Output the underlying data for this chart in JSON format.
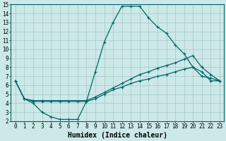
{
  "title": "",
  "xlabel": "Humidex (Indice chaleur)",
  "ylabel": "",
  "bg_color": "#cce8e8",
  "grid_color": "#aacccc",
  "line_color": "#006666",
  "xlim": [
    -0.5,
    23.5
  ],
  "ylim": [
    2,
    15
  ],
  "xticks": [
    0,
    1,
    2,
    3,
    4,
    5,
    6,
    7,
    8,
    9,
    10,
    11,
    12,
    13,
    14,
    15,
    16,
    17,
    18,
    19,
    20,
    21,
    22,
    23
  ],
  "yticks": [
    2,
    3,
    4,
    5,
    6,
    7,
    8,
    9,
    10,
    11,
    12,
    13,
    14,
    15
  ],
  "series": [
    {
      "x": [
        0,
        1,
        2,
        3,
        4,
        5,
        6,
        7,
        8,
        9,
        10,
        11,
        12,
        13,
        14,
        15,
        16,
        17,
        18,
        19,
        20,
        21,
        22,
        23
      ],
      "y": [
        6.5,
        4.5,
        4.0,
        3.0,
        2.5,
        2.2,
        2.2,
        2.2,
        4.2,
        7.5,
        10.8,
        13.0,
        14.8,
        14.8,
        14.8,
        13.5,
        12.5,
        11.8,
        10.5,
        9.5,
        8.0,
        7.5,
        6.5,
        6.5
      ]
    },
    {
      "x": [
        0,
        1,
        2,
        3,
        8,
        9,
        10,
        11,
        12,
        13,
        14,
        15,
        16,
        17,
        18,
        19,
        20,
        21,
        22,
        23
      ],
      "y": [
        6.5,
        4.5,
        4.3,
        4.3,
        4.3,
        4.7,
        5.2,
        5.7,
        6.2,
        6.7,
        7.2,
        7.5,
        7.9,
        8.2,
        8.5,
        8.9,
        9.3,
        8.0,
        7.2,
        6.5
      ]
    },
    {
      "x": [
        0,
        1,
        2,
        3,
        4,
        5,
        6,
        7,
        8,
        9,
        10,
        11,
        12,
        13,
        14,
        15,
        16,
        17,
        18,
        19,
        20,
        21,
        22,
        23
      ],
      "y": [
        6.5,
        4.5,
        4.2,
        4.2,
        4.2,
        4.2,
        4.2,
        4.2,
        4.2,
        4.5,
        5.0,
        5.5,
        5.8,
        6.2,
        6.5,
        6.7,
        7.0,
        7.2,
        7.5,
        7.8,
        8.0,
        7.0,
        6.8,
        6.5
      ]
    }
  ],
  "xlabel_fontsize": 7,
  "tick_fontsize": 5.5,
  "linewidth": 0.9,
  "markersize": 3
}
